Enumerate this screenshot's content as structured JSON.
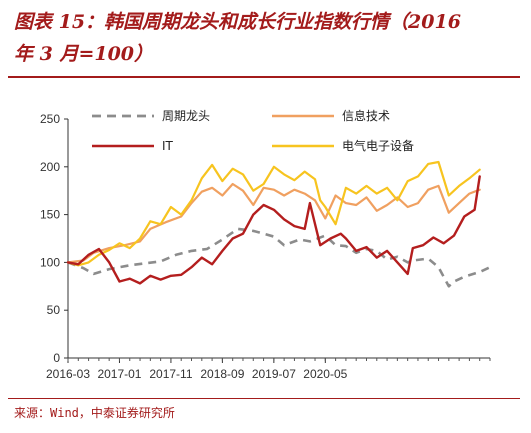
{
  "title": {
    "line1": "图表 15：韩国周期龙头和成长行业指数行情（2016",
    "line2": "年 3 月=100）"
  },
  "source": "来源：Wind，中泰证券研究所",
  "colors": {
    "accent": "#a31b1b",
    "cycle": "#8c8c8c",
    "info": "#f0a060",
    "it": "#b41e1e",
    "elec": "#f7c41f"
  },
  "chart_data": {
    "type": "line",
    "x_tick_labels": [
      "2016-03",
      "2017-01",
      "2017-11",
      "2018-09",
      "2019-07",
      "2020-05"
    ],
    "y_ticks": [
      0,
      50,
      100,
      150,
      200,
      250
    ],
    "ylim": [
      0,
      250
    ],
    "grid": false,
    "legend_position": "top",
    "series": [
      {
        "name": "周期龙头",
        "style": "dashed",
        "color": "#8c8c8c",
        "points": [
          [
            0,
            100
          ],
          [
            3,
            94
          ],
          [
            5,
            88
          ],
          [
            8,
            93
          ],
          [
            12,
            97
          ],
          [
            18,
            101
          ],
          [
            21,
            108
          ],
          [
            24,
            112
          ],
          [
            27,
            114
          ],
          [
            30,
            124
          ],
          [
            33,
            135
          ],
          [
            36,
            133
          ],
          [
            38,
            130
          ],
          [
            40,
            127
          ],
          [
            42,
            118
          ],
          [
            45,
            124
          ],
          [
            47,
            122
          ],
          [
            50,
            128
          ],
          [
            52,
            118
          ],
          [
            54,
            117
          ],
          [
            56,
            110
          ],
          [
            58,
            114
          ],
          [
            60,
            112
          ],
          [
            62,
            103
          ],
          [
            64,
            106
          ],
          [
            66,
            100
          ],
          [
            67,
            102
          ],
          [
            70,
            104
          ],
          [
            72,
            95
          ],
          [
            74,
            75
          ],
          [
            75,
            80
          ],
          [
            77,
            85
          ],
          [
            80,
            90
          ],
          [
            82,
            95
          ]
        ]
      },
      {
        "name": "信息技术",
        "style": "solid",
        "color": "#f0a060",
        "points": [
          [
            0,
            100
          ],
          [
            3,
            102
          ],
          [
            5,
            110
          ],
          [
            8,
            115
          ],
          [
            11,
            118
          ],
          [
            14,
            122
          ],
          [
            16,
            135
          ],
          [
            19,
            142
          ],
          [
            22,
            148
          ],
          [
            24,
            162
          ],
          [
            26,
            174
          ],
          [
            28,
            178
          ],
          [
            30,
            170
          ],
          [
            32,
            182
          ],
          [
            34,
            175
          ],
          [
            36,
            160
          ],
          [
            38,
            178
          ],
          [
            40,
            176
          ],
          [
            42,
            170
          ],
          [
            44,
            176
          ],
          [
            46,
            172
          ],
          [
            48,
            165
          ],
          [
            50,
            146
          ],
          [
            52,
            170
          ],
          [
            54,
            162
          ],
          [
            56,
            160
          ],
          [
            58,
            168
          ],
          [
            60,
            154
          ],
          [
            62,
            160
          ],
          [
            64,
            168
          ],
          [
            66,
            158
          ],
          [
            68,
            162
          ],
          [
            70,
            176
          ],
          [
            72,
            180
          ],
          [
            74,
            152
          ],
          [
            76,
            162
          ],
          [
            78,
            172
          ],
          [
            80,
            176
          ]
        ]
      },
      {
        "name": "IT",
        "style": "solid",
        "color": "#b41e1e",
        "points": [
          [
            0,
            100
          ],
          [
            2,
            98
          ],
          [
            4,
            108
          ],
          [
            6,
            114
          ],
          [
            8,
            100
          ],
          [
            10,
            80
          ],
          [
            12,
            83
          ],
          [
            14,
            78
          ],
          [
            16,
            86
          ],
          [
            18,
            82
          ],
          [
            20,
            86
          ],
          [
            22,
            87
          ],
          [
            24,
            95
          ],
          [
            26,
            105
          ],
          [
            28,
            98
          ],
          [
            30,
            112
          ],
          [
            32,
            125
          ],
          [
            34,
            130
          ],
          [
            36,
            150
          ],
          [
            38,
            160
          ],
          [
            40,
            155
          ],
          [
            42,
            145
          ],
          [
            44,
            138
          ],
          [
            46,
            135
          ],
          [
            47,
            162
          ],
          [
            49,
            118
          ],
          [
            51,
            125
          ],
          [
            53,
            130
          ],
          [
            54,
            125
          ],
          [
            56,
            112
          ],
          [
            58,
            116
          ],
          [
            60,
            105
          ],
          [
            62,
            112
          ],
          [
            64,
            100
          ],
          [
            66,
            88
          ],
          [
            67,
            115
          ],
          [
            69,
            118
          ],
          [
            71,
            126
          ],
          [
            73,
            120
          ],
          [
            75,
            128
          ],
          [
            77,
            148
          ],
          [
            79,
            155
          ],
          [
            80,
            190
          ]
        ]
      },
      {
        "name": "电气电子设备",
        "style": "solid",
        "color": "#f7c41f",
        "points": [
          [
            0,
            100
          ],
          [
            2,
            97
          ],
          [
            4,
            100
          ],
          [
            6,
            108
          ],
          [
            8,
            113
          ],
          [
            10,
            120
          ],
          [
            12,
            115
          ],
          [
            14,
            125
          ],
          [
            16,
            143
          ],
          [
            18,
            140
          ],
          [
            20,
            158
          ],
          [
            22,
            150
          ],
          [
            24,
            165
          ],
          [
            26,
            188
          ],
          [
            28,
            202
          ],
          [
            30,
            185
          ],
          [
            32,
            198
          ],
          [
            34,
            192
          ],
          [
            36,
            175
          ],
          [
            38,
            182
          ],
          [
            40,
            200
          ],
          [
            42,
            192
          ],
          [
            44,
            186
          ],
          [
            46,
            195
          ],
          [
            48,
            187
          ],
          [
            49,
            165
          ],
          [
            50,
            158
          ],
          [
            52,
            140
          ],
          [
            54,
            178
          ],
          [
            56,
            172
          ],
          [
            58,
            180
          ],
          [
            60,
            172
          ],
          [
            62,
            178
          ],
          [
            64,
            165
          ],
          [
            66,
            185
          ],
          [
            68,
            190
          ],
          [
            70,
            203
          ],
          [
            72,
            205
          ],
          [
            74,
            170
          ],
          [
            76,
            180
          ],
          [
            78,
            188
          ],
          [
            80,
            197
          ]
        ]
      }
    ]
  }
}
